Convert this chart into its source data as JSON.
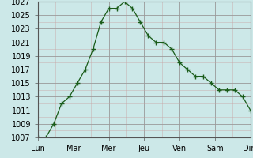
{
  "x_labels": [
    "Lun",
    "Mar",
    "Mer",
    "Jeu",
    "Ven",
    "Sam",
    "Dim"
  ],
  "x_tick_positions": [
    0,
    2,
    4,
    6,
    8,
    10,
    12
  ],
  "y_values": [
    1007,
    1007,
    1009,
    1012,
    1013,
    1015,
    1017,
    1020,
    1024,
    1026,
    1026,
    1027,
    1026,
    1024,
    1022,
    1021,
    1021,
    1020,
    1018,
    1017,
    1016,
    1016,
    1015,
    1014,
    1014,
    1014,
    1013,
    1011
  ],
  "ylim_min": 1007,
  "ylim_max": 1027,
  "ytick_step": 2,
  "line_color": "#1a5c1a",
  "marker_color": "#1a5c1a",
  "bg_color": "#cce8e8",
  "grid_major_color": "#aaaaaa",
  "grid_minor_color_x": "#d8b8b8",
  "grid_minor_color_y": "#d8b8b8",
  "axis_label_fontsize": 7,
  "tick_fontsize": 7
}
